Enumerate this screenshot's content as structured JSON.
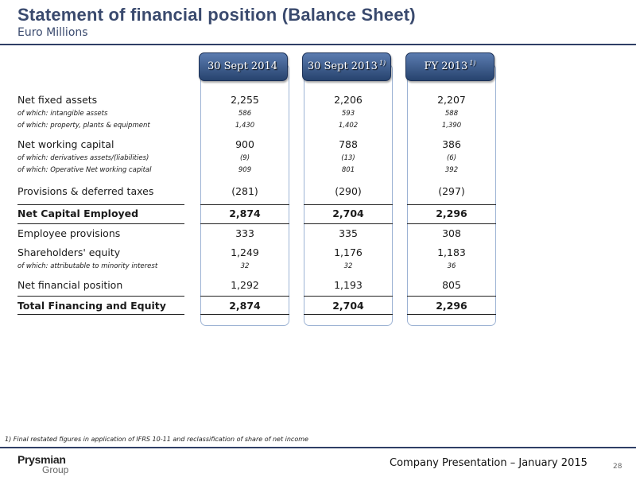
{
  "header": {
    "title": "Statement of financial position (Balance Sheet)",
    "subtitle": "Euro Millions"
  },
  "columns": [
    {
      "label": "30 Sept 2014",
      "note": ""
    },
    {
      "label": "30 Sept 2013",
      "note": "1)"
    },
    {
      "label": "FY 2013",
      "note": "1)"
    }
  ],
  "rows": [
    {
      "label": "Net fixed assets",
      "values": [
        "2,255",
        "2,206",
        "2,207"
      ]
    },
    {
      "label": "of which: intangible assets",
      "values": [
        "586",
        "593",
        "588"
      ]
    },
    {
      "label": "of which: property, plants & equipment",
      "values": [
        "1,430",
        "1,402",
        "1,390"
      ]
    },
    {
      "label": "Net working capital",
      "values": [
        "900",
        "788",
        "386"
      ]
    },
    {
      "label": "of which: derivatives assets/(liabilities)",
      "values": [
        "(9)",
        "(13)",
        "(6)"
      ]
    },
    {
      "label": "of which: Operative Net working capital",
      "values": [
        "909",
        "801",
        "392"
      ]
    },
    {
      "label": "Provisions & deferred taxes",
      "values": [
        "(281)",
        "(290)",
        "(297)"
      ]
    },
    {
      "label": "Net Capital Employed",
      "values": [
        "2,874",
        "2,704",
        "2,296"
      ]
    },
    {
      "label": "Employee provisions",
      "values": [
        "333",
        "335",
        "308"
      ]
    },
    {
      "label": "Shareholders' equity",
      "values": [
        "1,249",
        "1,176",
        "1,183"
      ]
    },
    {
      "label": "of which: attributable to minority interest",
      "values": [
        "32",
        "32",
        "36"
      ]
    },
    {
      "label": "Net financial position",
      "values": [
        "1,292",
        "1,193",
        "805"
      ]
    },
    {
      "label": "Total Financing and Equity",
      "values": [
        "2,874",
        "2,704",
        "2,296"
      ]
    }
  ],
  "footnote": "1) Final restated figures in application of IFRS 10-11 and reclassification of share of net income",
  "footer": {
    "logo_main": "Prysmian",
    "logo_sub": "Group",
    "text": "Company Presentation – January 2015",
    "page": "28"
  },
  "colors": {
    "title": "#3a4a6e",
    "header_fill": "#27436e",
    "column_border": "#9db3d4"
  }
}
